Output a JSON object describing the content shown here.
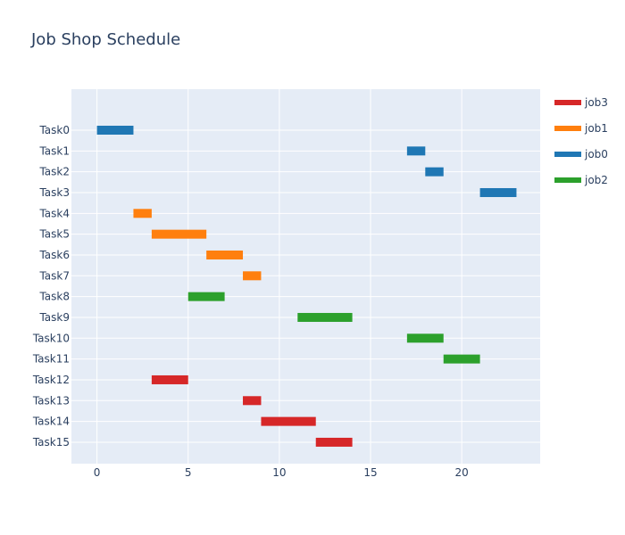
{
  "chart_data": {
    "type": "bar",
    "orientation": "horizontal",
    "title": "Job Shop Schedule",
    "xlabel": "",
    "ylabel": "",
    "xlim": [
      -1.4,
      24.3
    ],
    "x_ticks": [
      0,
      5,
      10,
      15,
      20
    ],
    "grid": true,
    "legend_position": "top-right",
    "categories": [
      "Task0",
      "Task1",
      "Task2",
      "Task3",
      "Task4",
      "Task5",
      "Task6",
      "Task7",
      "Task8",
      "Task9",
      "Task10",
      "Task11",
      "Task12",
      "Task13",
      "Task14",
      "Task15"
    ],
    "series": [
      {
        "name": "job3",
        "color": "#d62728",
        "tasks": [
          {
            "task": "Task12",
            "start": 3,
            "end": 5
          },
          {
            "task": "Task13",
            "start": 8,
            "end": 9
          },
          {
            "task": "Task14",
            "start": 9,
            "end": 12
          },
          {
            "task": "Task15",
            "start": 12,
            "end": 14
          }
        ]
      },
      {
        "name": "job1",
        "color": "#ff7f0e",
        "tasks": [
          {
            "task": "Task4",
            "start": 2,
            "end": 3
          },
          {
            "task": "Task5",
            "start": 3,
            "end": 6
          },
          {
            "task": "Task6",
            "start": 6,
            "end": 8
          },
          {
            "task": "Task7",
            "start": 8,
            "end": 9
          }
        ]
      },
      {
        "name": "job0",
        "color": "#1f77b4",
        "tasks": [
          {
            "task": "Task0",
            "start": 0,
            "end": 2
          },
          {
            "task": "Task1",
            "start": 17,
            "end": 18
          },
          {
            "task": "Task2",
            "start": 18,
            "end": 19
          },
          {
            "task": "Task3",
            "start": 21,
            "end": 23
          }
        ]
      },
      {
        "name": "job2",
        "color": "#2ca02c",
        "tasks": [
          {
            "task": "Task8",
            "start": 5,
            "end": 7
          },
          {
            "task": "Task9",
            "start": 11,
            "end": 14
          },
          {
            "task": "Task10",
            "start": 17,
            "end": 19
          },
          {
            "task": "Task11",
            "start": 19,
            "end": 21
          }
        ]
      }
    ]
  }
}
